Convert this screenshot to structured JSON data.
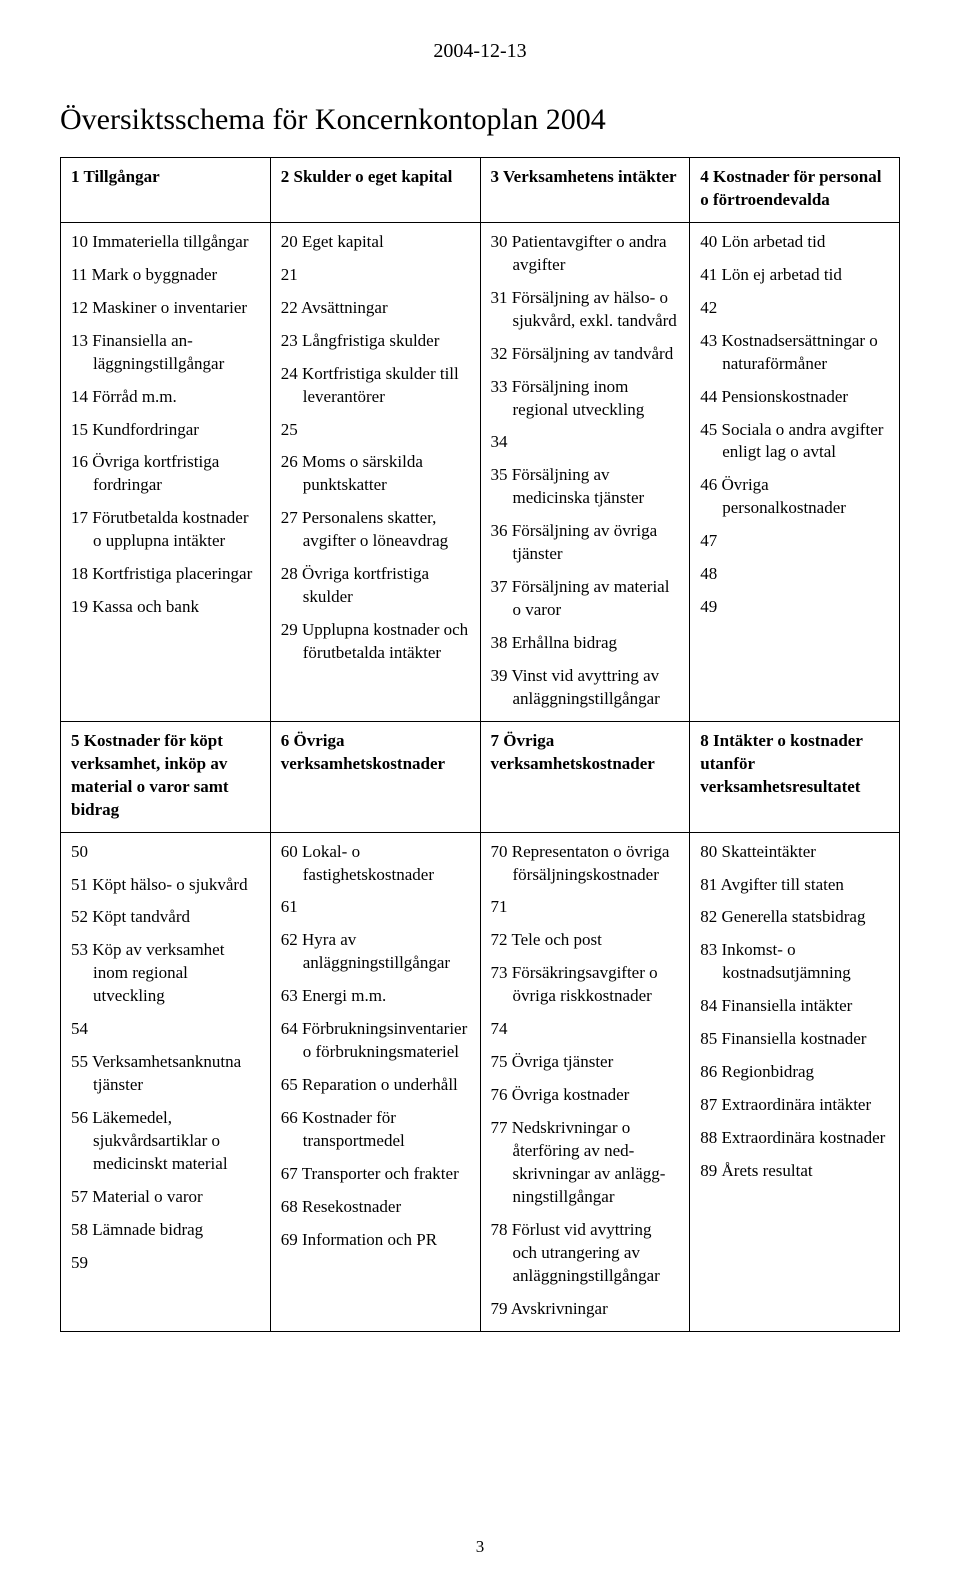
{
  "date": "2004-12-13",
  "title": "Översiktsschema för Koncernkontoplan 2004",
  "page_number": "3",
  "row1": {
    "col1": {
      "header": "1 Tillgångar",
      "items": [
        "10 Immateriella tillgångar",
        "11 Mark o byggnader",
        "12 Maskiner o inventarier",
        "13 Finansiella an­läggningstillgångar",
        "14 Förråd m.m.",
        "15 Kundfordringar",
        "16 Övriga kortfristiga fordringar",
        "17 Förutbetalda kostnader o upplupna intäkter",
        "18 Kortfristiga placeringar",
        "19 Kassa och bank"
      ]
    },
    "col2": {
      "header": "2 Skulder o eget kapital",
      "items": [
        "20 Eget kapital",
        "21",
        "22 Avsättningar",
        "23 Långfristiga skulder",
        "24 Kortfristiga skulder till leverantörer",
        "25",
        "26 Moms o särskilda punktskatter",
        "27 Personalens skatter, avgifter o löneavdrag",
        "28 Övriga kortfristiga skulder",
        "29 Upplupna kostnader och förutbetalda intäkter"
      ]
    },
    "col3": {
      "header": "3 Verksamhetens intäkter",
      "items": [
        "30 Patientavgifter o andra avgifter",
        "31 Försäljning av hälso- o sjukvård, exkl. tandvård",
        "32 Försäljning av tandvård",
        "33 Försäljning inom regional utveckling",
        "34",
        "35 Försäljning av medicinska tjänster",
        "36 Försäljning av övriga tjänster",
        "37 Försäljning av material o varor",
        "38 Erhållna bidrag",
        "39 Vinst vid avyttring av anläggningstillgångar"
      ]
    },
    "col4": {
      "header": "4 Kostnader för personal o förtroendevalda",
      "items": [
        "40 Lön arbetad tid",
        "41 Lön ej arbetad tid",
        "42",
        "43 Kostnadsersättningar o naturaförmåner",
        "44 Pensionskostnader",
        "45 Sociala o andra avgifter enligt lag o avtal",
        "46 Övriga personalkostnader",
        "47",
        "48",
        "49"
      ]
    }
  },
  "row2": {
    "col1": {
      "header": "5 Kostnader för köpt verksamhet, inköp av material o varor samt bidrag",
      "items": [
        "50",
        "51 Köpt hälso- o sjukvård",
        "52 Köpt tandvård",
        "53 Köp av verksamhet inom regional utveckling",
        "54",
        "55 Verksamhetsanknutna tjänster",
        "56 Läkemedel, sjukvårdsartiklar o medicinskt material",
        "57 Material o varor",
        "58 Lämnade bidrag",
        "59"
      ]
    },
    "col2": {
      "header": "6 Övriga verksamhetskostnader",
      "items": [
        "60 Lokal- o fastighetskostnader",
        "61",
        "62 Hyra av anläggningstillgångar",
        "63 Energi m.m.",
        "64 Förbrukningsinventarier o förbrukningsmateriel",
        "65 Reparation o underhåll",
        "66 Kostnader för transportmedel",
        "67 Transporter och frakter",
        "68 Resekostnader",
        "69 Information och PR"
      ]
    },
    "col3": {
      "header": "7 Övriga verksamhetskostnader",
      "items": [
        "70 Representaton o övriga försäljningskostnader",
        "71",
        "72 Tele och post",
        "73 Försäkringsavgifter o övriga riskkostnader",
        "74",
        "75 Övriga tjänster",
        "76 Övriga kostnader",
        "77 Nedskrivningar o återföring av ned­skrivningar av anlägg­ningstillgångar",
        "78 Förlust vid avyttring och utrangering av anlägg­ningstillgångar",
        "79 Avskrivningar"
      ]
    },
    "col4": {
      "header": "8 Intäkter o kostnader utanför verksamhetsresultatet",
      "items": [
        "80 Skatteintäkter",
        "81 Avgifter till staten",
        "82 Generella statsbidrag",
        "83 Inkomst- o kostnadsutjämning",
        "84 Finansiella intäkter",
        "85 Finansiella kostnader",
        "86 Regionbidrag",
        "87 Extraordinära intäkter",
        "88 Extraordinära kostnader",
        "89 Årets resultat"
      ]
    }
  }
}
